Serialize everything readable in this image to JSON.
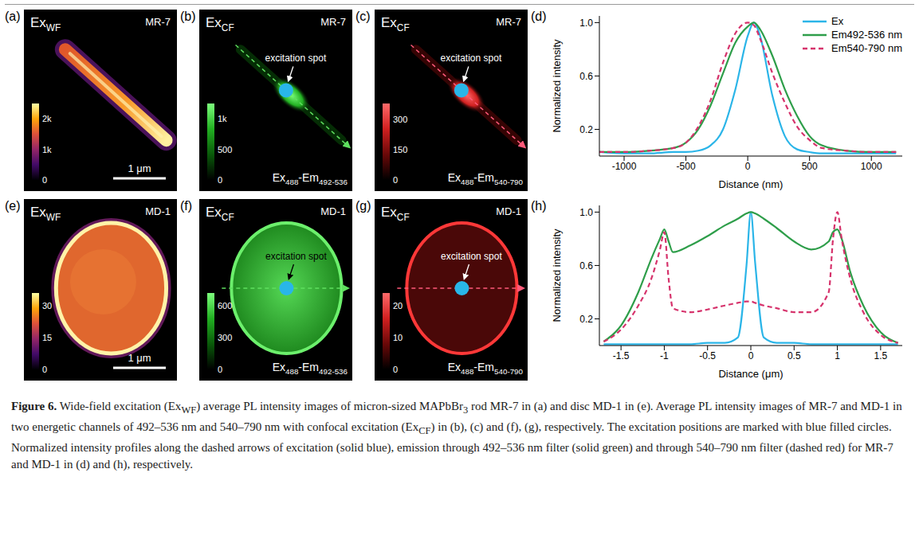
{
  "images": [
    {
      "letter": "(a)",
      "type": "rod",
      "excitation": [
        {
          "text": "Ex"
        },
        {
          "text": "WF",
          "sub": true
        }
      ],
      "sample": "MR-7",
      "color": "inferno",
      "colorbar": {
        "range": [
          0,
          2500
        ],
        "ticks": [
          {
            "value": 2000,
            "label": "2k"
          },
          {
            "value": 1000,
            "label": "1k"
          },
          0
        ]
      },
      "scale_bar": "1 μm"
    },
    {
      "letter": "(b)",
      "type": "rod",
      "excitation": [
        {
          "text": "Ex"
        },
        {
          "text": "CF",
          "sub": true
        }
      ],
      "sample": "MR-7",
      "color": "green",
      "colorbar": {
        "range": [
          0,
          1250
        ],
        "ticks": [
          {
            "value": 1000,
            "label": "1k"
          },
          500,
          0
        ]
      },
      "annotation": "excitation spot",
      "channel": [
        {
          "text": "Ex"
        },
        {
          "text": "488",
          "sub": true
        },
        {
          "text": "-Em"
        },
        {
          "text": "492-536",
          "sub": true
        }
      ]
    },
    {
      "letter": "(c)",
      "type": "rod",
      "excitation": [
        {
          "text": "Ex"
        },
        {
          "text": "CF",
          "sub": true
        }
      ],
      "sample": "MR-7",
      "color": "red",
      "colorbar": {
        "range": [
          0,
          380
        ],
        "ticks": [
          300,
          150,
          0
        ]
      },
      "annotation": "excitation spot",
      "channel": [
        {
          "text": "Ex"
        },
        {
          "text": "488",
          "sub": true
        },
        {
          "text": "-Em"
        },
        {
          "text": "540-790",
          "sub": true
        }
      ]
    },
    {
      "letter": "(e)",
      "type": "disc",
      "excitation": [
        {
          "text": "Ex"
        },
        {
          "text": "WF",
          "sub": true
        }
      ],
      "sample": "MD-1",
      "color": "inferno",
      "colorbar": {
        "range": [
          0,
          36
        ],
        "ticks": [
          30,
          15,
          0
        ]
      },
      "scale_bar": "1 μm"
    },
    {
      "letter": "(f)",
      "type": "disc",
      "excitation": [
        {
          "text": "Ex"
        },
        {
          "text": "CF",
          "sub": true
        }
      ],
      "sample": "MD-1",
      "color": "green",
      "colorbar": {
        "range": [
          0,
          720
        ],
        "ticks": [
          600,
          300,
          0
        ]
      },
      "annotation": "excitation spot",
      "channel": [
        {
          "text": "Ex"
        },
        {
          "text": "488",
          "sub": true
        },
        {
          "text": "-Em"
        },
        {
          "text": "492-536",
          "sub": true
        }
      ]
    },
    {
      "letter": "(g)",
      "type": "disc",
      "excitation": [
        {
          "text": "Ex"
        },
        {
          "text": "CF",
          "sub": true
        }
      ],
      "sample": "MD-1",
      "color": "red",
      "colorbar": {
        "range": [
          0,
          24
        ],
        "ticks": [
          20,
          10,
          0
        ]
      },
      "annotation": "excitation spot",
      "channel": [
        {
          "text": "Ex"
        },
        {
          "text": "488",
          "sub": true
        },
        {
          "text": "-Em"
        },
        {
          "text": "540-790",
          "sub": true
        }
      ]
    }
  ],
  "chart_data": [
    {
      "type": "line",
      "letter": "(d)",
      "xlabel": "Distance (nm)",
      "ylabel": "Normalized intensity",
      "x": [
        -1200,
        -1000,
        -800,
        -600,
        -500,
        -400,
        -300,
        -200,
        -100,
        0,
        50,
        100,
        200,
        300,
        400,
        500,
        600,
        800,
        1000,
        1200
      ],
      "xlim": [
        -1200,
        1250
      ],
      "xticks": [
        -1000,
        -500,
        0,
        500,
        1000
      ],
      "ylim": [
        0,
        1.05
      ],
      "yticks": [
        0.2,
        0.6,
        {
          "value": 1,
          "label": "1.0"
        }
      ],
      "legend": "upper right",
      "series": [
        {
          "name": "Ex",
          "color": "#2bb5e8",
          "line_style": "solid",
          "values": [
            0.03,
            0.02,
            0.02,
            0.03,
            0.03,
            0.04,
            0.08,
            0.2,
            0.5,
            0.9,
            1.0,
            0.9,
            0.45,
            0.15,
            0.05,
            0.03,
            0.02,
            0.02,
            0.02,
            0.02
          ]
        },
        {
          "name": "Em492-536 nm",
          "color": "#2e9e4a",
          "line_style": "solid",
          "values": [
            0.03,
            0.03,
            0.04,
            0.06,
            0.1,
            0.2,
            0.38,
            0.62,
            0.85,
            0.97,
            1.0,
            0.95,
            0.75,
            0.5,
            0.3,
            0.15,
            0.08,
            0.04,
            0.03,
            0.03
          ]
        },
        {
          "name": "Em540-790 nm",
          "color": "#d6336c",
          "line_style": "dashed",
          "values": [
            0.03,
            0.03,
            0.04,
            0.06,
            0.1,
            0.22,
            0.42,
            0.7,
            0.92,
            1.0,
            0.98,
            0.88,
            0.62,
            0.4,
            0.22,
            0.12,
            0.06,
            0.04,
            0.03,
            0.03
          ]
        }
      ]
    },
    {
      "type": "line",
      "letter": "(h)",
      "xlabel": "Distance (μm)",
      "ylabel": "Normalized intensity",
      "x": [
        -1.7,
        -1.5,
        -1.3,
        -1.15,
        -1.05,
        -1.0,
        -0.95,
        -0.9,
        -0.7,
        -0.5,
        -0.3,
        -0.15,
        -0.05,
        0,
        0.05,
        0.15,
        0.3,
        0.5,
        0.7,
        0.9,
        0.95,
        1.0,
        1.05,
        1.15,
        1.3,
        1.5,
        1.7
      ],
      "xlim": [
        -1.75,
        1.75
      ],
      "xticks": [
        -1.5,
        -1,
        -0.5,
        0,
        0.5,
        1,
        1.5
      ],
      "ylim": [
        0,
        1.05
      ],
      "yticks": [
        0.2,
        0.6,
        {
          "value": 1,
          "label": "1.0"
        }
      ],
      "series": [
        {
          "color": "#2bb5e8",
          "line_style": "solid",
          "values": [
            0.01,
            0.01,
            0.01,
            0.01,
            0.01,
            0.01,
            0.01,
            0.01,
            0.01,
            0.02,
            0.02,
            0.06,
            0.6,
            1.0,
            0.62,
            0.06,
            0.02,
            0.02,
            0.01,
            0.01,
            0.01,
            0.01,
            0.01,
            0.01,
            0.01,
            0.01,
            0.01
          ]
        },
        {
          "color": "#2e9e4a",
          "line_style": "solid",
          "values": [
            0.03,
            0.15,
            0.4,
            0.65,
            0.8,
            0.87,
            0.78,
            0.7,
            0.75,
            0.82,
            0.9,
            0.95,
            0.99,
            1.0,
            0.99,
            0.95,
            0.88,
            0.78,
            0.72,
            0.78,
            0.85,
            0.87,
            0.8,
            0.55,
            0.3,
            0.1,
            0.02
          ]
        },
        {
          "color": "#d6336c",
          "line_style": "dashed",
          "values": [
            0.03,
            0.12,
            0.3,
            0.5,
            0.72,
            0.85,
            0.5,
            0.28,
            0.25,
            0.27,
            0.3,
            0.32,
            0.33,
            0.33,
            0.32,
            0.3,
            0.28,
            0.25,
            0.25,
            0.4,
            0.8,
            1.0,
            0.8,
            0.5,
            0.25,
            0.08,
            0.02
          ]
        }
      ]
    }
  ],
  "caption": [
    {
      "text": "Figure 6.",
      "bold": true
    },
    {
      "text": " Wide-field excitation (Ex"
    },
    {
      "text": "WF",
      "sub": true
    },
    {
      "text": ") average PL intensity images of micron-sized MAPbBr"
    },
    {
      "text": "3",
      "sub": true
    },
    {
      "text": " rod MR-7 in (a) and disc MD-1 in (e). Average PL intensity images of MR-7 and MD-1 in two energetic channels of 492–536 nm and 540–790 nm with confocal excitation (Ex"
    },
    {
      "text": "CF",
      "sub": true
    },
    {
      "text": ") in (b), (c) and (f), (g), respectively. The excitation positions are marked with blue filled circles. Normalized intensity profiles along the dashed arrows of excitation (solid blue), emission through 492–536 nm filter (solid green) and through 540–790 nm filter (dashed red) for MR-7 and MD-1 in (d) and (h), respectively."
    }
  ]
}
